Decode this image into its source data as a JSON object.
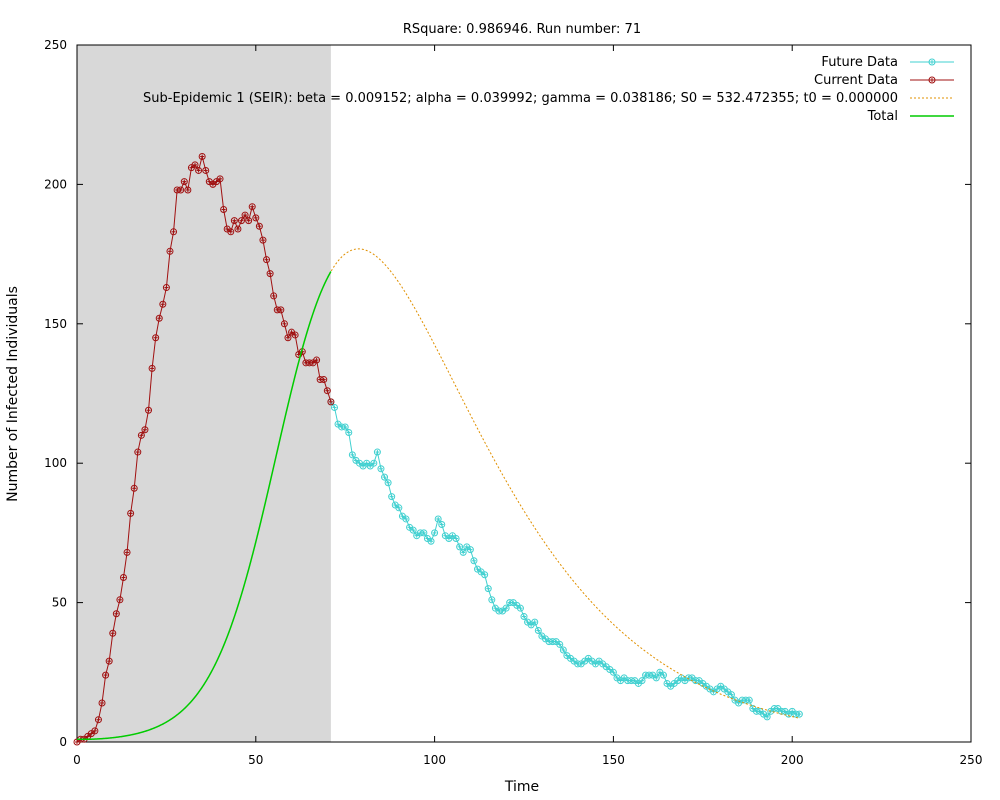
{
  "chart_data": {
    "type": "line",
    "title": "RSquare: 0.986946. Run number: 71",
    "xlabel": "Time",
    "ylabel": "Number of Infected Individuals",
    "xlim": [
      0,
      250
    ],
    "ylim": [
      0,
      250
    ],
    "x_ticks": [
      0,
      50,
      100,
      150,
      200,
      250
    ],
    "y_ticks": [
      0,
      50,
      100,
      150,
      200,
      250
    ],
    "grid": false,
    "legend_position": "top-right",
    "shaded_region": {
      "x_start": 0,
      "x_end": 71,
      "color": "#d8d8d8"
    },
    "series": [
      {
        "name": "Future Data",
        "color": "#40d0d0",
        "marker": "circle",
        "x": [
          71,
          72,
          73,
          74,
          75,
          76,
          77,
          78,
          79,
          80,
          81,
          82,
          83,
          84,
          85,
          86,
          87,
          88,
          89,
          90,
          91,
          92,
          93,
          94,
          95,
          96,
          97,
          98,
          99,
          100,
          101,
          102,
          103,
          104,
          105,
          106,
          107,
          108,
          109,
          110,
          111,
          112,
          113,
          114,
          115,
          116,
          117,
          118,
          119,
          120,
          121,
          122,
          123,
          124,
          125,
          126,
          127,
          128,
          129,
          130,
          131,
          132,
          133,
          134,
          135,
          136,
          137,
          138,
          139,
          140,
          141,
          142,
          143,
          144,
          145,
          146,
          147,
          148,
          149,
          150,
          151,
          152,
          153,
          154,
          155,
          156,
          157,
          158,
          159,
          160,
          161,
          162,
          163,
          164,
          165,
          166,
          167,
          168,
          169,
          170,
          171,
          172,
          173,
          174,
          175,
          176,
          177,
          178,
          179,
          180,
          181,
          182,
          183,
          184,
          185,
          186,
          187,
          188,
          189,
          190,
          191,
          192,
          193,
          194,
          195,
          196,
          197,
          198,
          199,
          200,
          201,
          202
        ],
        "y": [
          122,
          120,
          114,
          113,
          113,
          111,
          103,
          101,
          100,
          99,
          100,
          99,
          100,
          104,
          98,
          95,
          93,
          88,
          85,
          84,
          81,
          80,
          77,
          76,
          74,
          75,
          75,
          73,
          72,
          75,
          80,
          78,
          74,
          73,
          74,
          73,
          70,
          68,
          70,
          69,
          65,
          62,
          61,
          60,
          55,
          51,
          48,
          47,
          47,
          48,
          50,
          50,
          49,
          48,
          45,
          43,
          42,
          43,
          40,
          38,
          37,
          36,
          36,
          36,
          35,
          33,
          31,
          30,
          29,
          28,
          28,
          29,
          30,
          29,
          28,
          29,
          28,
          27,
          26,
          25,
          23,
          22,
          23,
          22,
          22,
          22,
          21,
          22,
          24,
          24,
          24,
          23,
          25,
          24,
          21,
          20,
          21,
          22,
          23,
          22,
          23,
          23,
          22,
          22,
          21,
          20,
          19,
          18,
          19,
          20,
          19,
          18,
          17,
          15,
          14,
          15,
          15,
          15,
          12,
          11,
          11,
          10,
          9,
          11,
          12,
          12,
          11,
          11,
          10,
          11,
          10,
          10
        ]
      },
      {
        "name": "Current Data",
        "color": "#a01010",
        "marker": "circle",
        "x": [
          0,
          1,
          2,
          3,
          4,
          5,
          6,
          7,
          8,
          9,
          10,
          11,
          12,
          13,
          14,
          15,
          16,
          17,
          18,
          19,
          20,
          21,
          22,
          23,
          24,
          25,
          26,
          27,
          28,
          29,
          30,
          31,
          32,
          33,
          34,
          35,
          36,
          37,
          38,
          39,
          40,
          41,
          42,
          43,
          44,
          45,
          46,
          47,
          48,
          49,
          50,
          51,
          52,
          53,
          54,
          55,
          56,
          57,
          58,
          59,
          60,
          61,
          62,
          63,
          64,
          65,
          66,
          67,
          68,
          69,
          70,
          71
        ],
        "y": [
          0,
          1,
          1,
          2,
          3,
          4,
          8,
          14,
          24,
          29,
          39,
          46,
          51,
          59,
          68,
          82,
          91,
          104,
          110,
          112,
          119,
          134,
          145,
          152,
          157,
          163,
          176,
          183,
          198,
          198,
          201,
          198,
          206,
          207,
          205,
          210,
          205,
          201,
          200,
          201,
          202,
          191,
          184,
          183,
          187,
          184,
          187,
          189,
          187,
          192,
          188,
          185,
          180,
          173,
          168,
          160,
          155,
          155,
          150,
          145,
          147,
          146,
          139,
          140,
          136,
          136,
          136,
          137,
          130,
          130,
          126,
          122
        ]
      },
      {
        "name": "Sub-Epidemic 1 (SEIR): beta = 0.009152; alpha = 0.039992; gamma = 0.038186; S0 = 532.472355; t0 = 0.000000",
        "color": "#e09000",
        "dashed": true,
        "model": {
          "type": "seir",
          "beta": 0.009152,
          "alpha": 0.039992,
          "gamma": 0.038186,
          "S0": 532.472355,
          "t0": 0.0,
          "t_end": 202
        }
      },
      {
        "name": "Total",
        "color": "#00cc00",
        "model": {
          "type": "seir",
          "beta": 0.009152,
          "alpha": 0.039992,
          "gamma": 0.038186,
          "S0": 532.472355,
          "t0": 0.0,
          "t_end": 71
        }
      }
    ]
  }
}
